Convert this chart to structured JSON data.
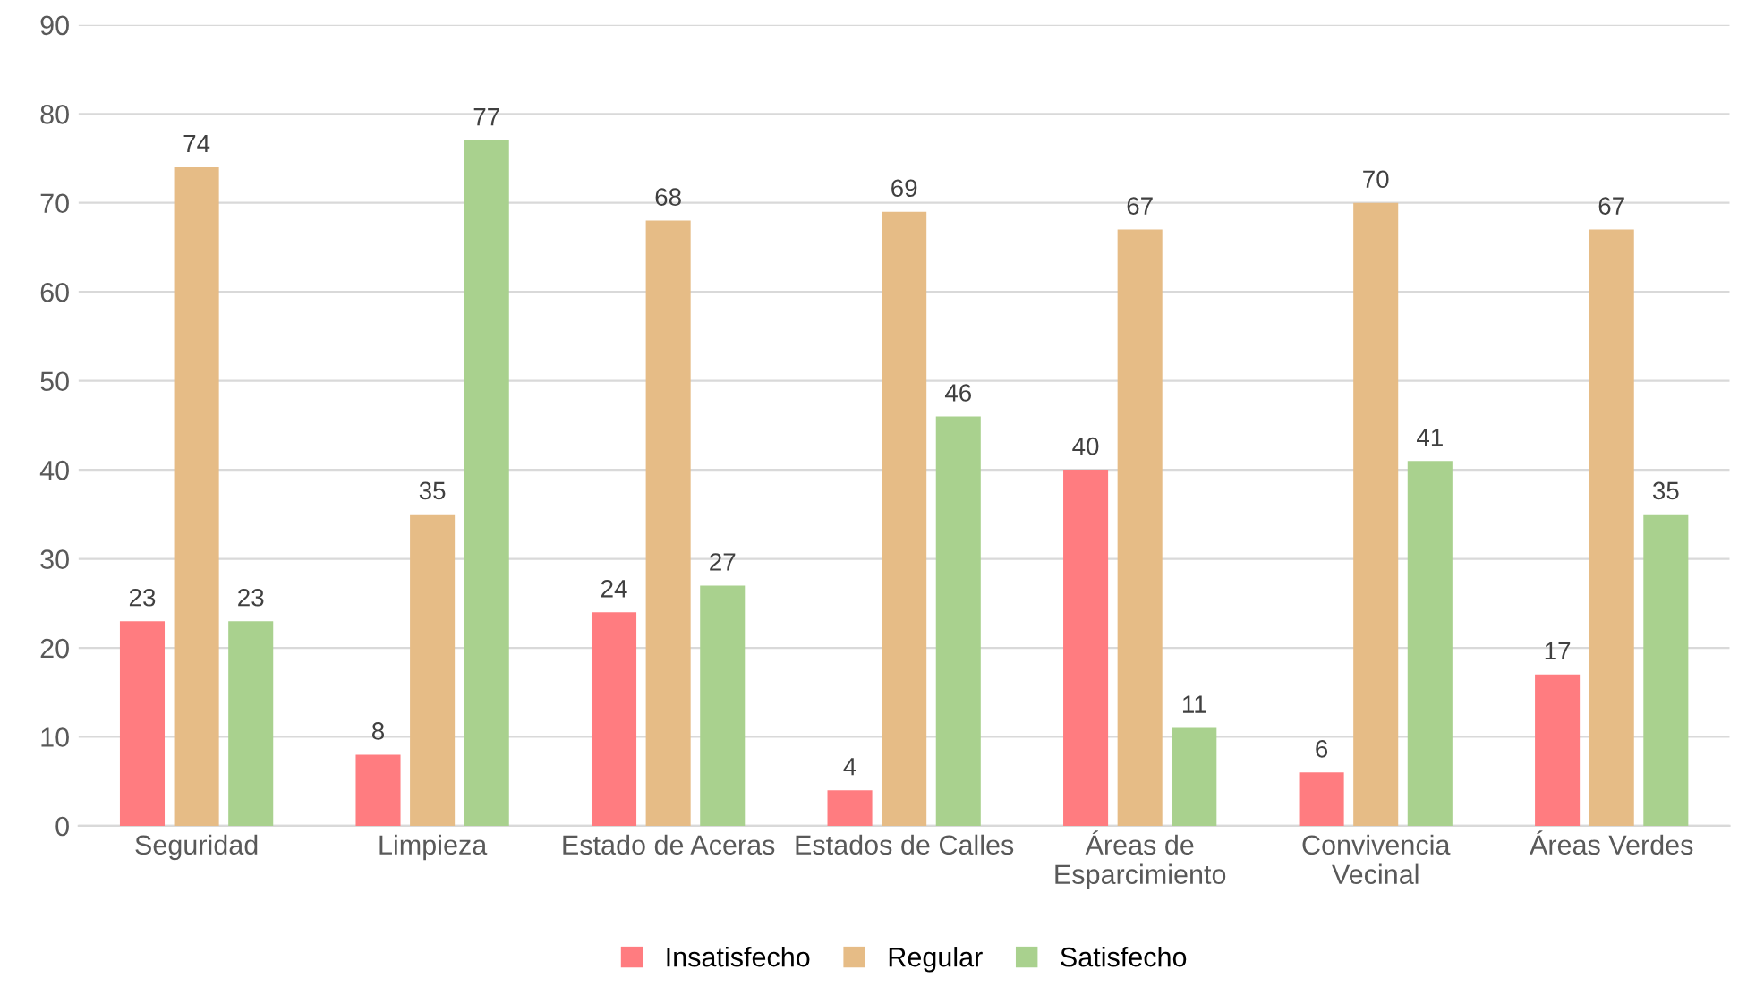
{
  "chart_data": {
    "type": "bar",
    "categories": [
      "Seguridad",
      "Limpieza",
      "Estado de Aceras",
      "Estados de Calles",
      "Áreas de\nEsparcimiento",
      "Convivencia\nVecinal",
      "Áreas Verdes"
    ],
    "series": [
      {
        "name": "Insatisfecho",
        "color": "#ff7c80",
        "values": [
          23,
          8,
          24,
          4,
          40,
          6,
          17
        ]
      },
      {
        "name": "Regular",
        "color": "#e6bc86",
        "values": [
          74,
          35,
          68,
          69,
          67,
          70,
          67
        ]
      },
      {
        "name": "Satisfecho",
        "color": "#a9d18e",
        "values": [
          23,
          77,
          27,
          46,
          11,
          41,
          35
        ]
      }
    ],
    "ylim": [
      0,
      90
    ],
    "yticks": [
      0,
      10,
      20,
      30,
      40,
      50,
      60,
      70,
      80,
      90
    ],
    "grid": "y",
    "legend": "bottom",
    "data_labels": true
  }
}
